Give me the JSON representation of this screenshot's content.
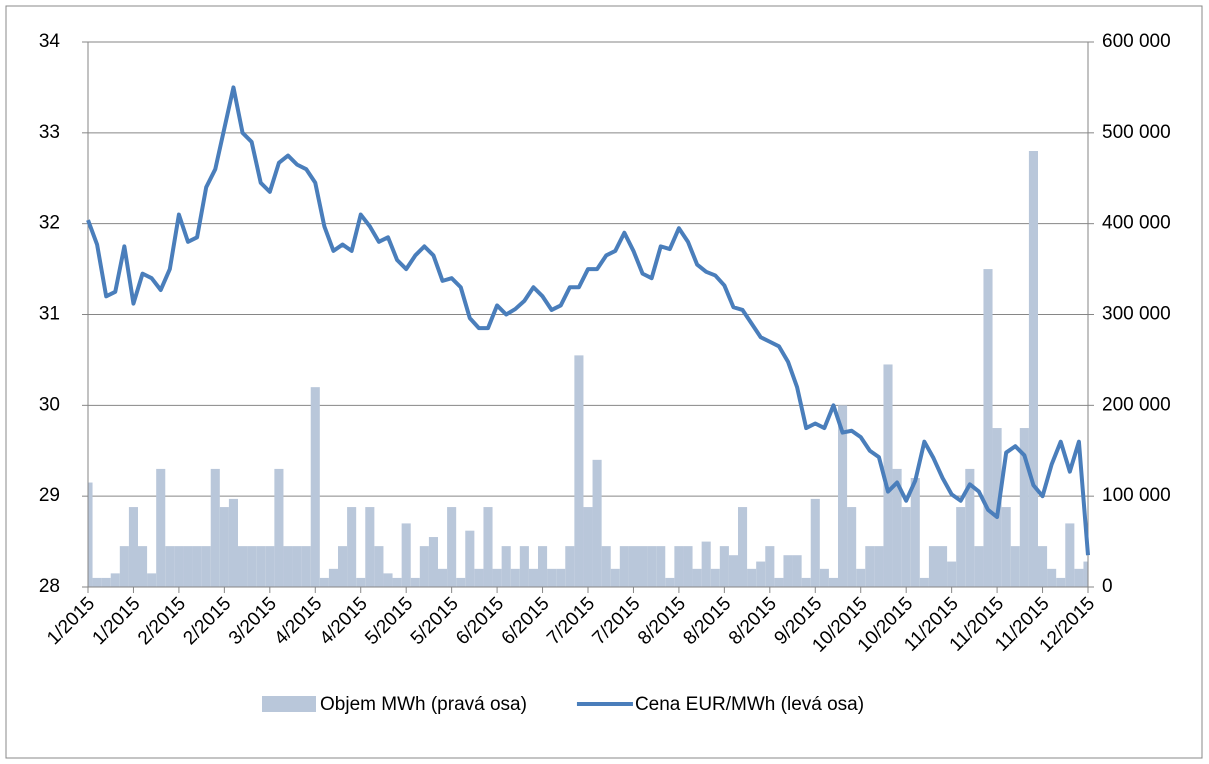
{
  "chart_data": {
    "type": "bar-line",
    "categories": [
      "1/2015",
      null,
      null,
      null,
      null,
      "1/2015",
      null,
      null,
      null,
      null,
      "2/2015",
      null,
      null,
      null,
      null,
      "2/2015",
      null,
      null,
      null,
      null,
      "3/2015",
      null,
      null,
      null,
      null,
      "4/2015",
      null,
      null,
      null,
      null,
      "4/2015",
      null,
      null,
      null,
      null,
      "5/2015",
      null,
      null,
      null,
      null,
      "5/2015",
      null,
      null,
      null,
      null,
      "6/2015",
      null,
      null,
      null,
      null,
      "6/2015",
      null,
      null,
      null,
      null,
      "7/2015",
      null,
      null,
      null,
      null,
      "7/2015",
      null,
      null,
      null,
      null,
      "8/2015",
      null,
      null,
      null,
      null,
      "8/2015",
      null,
      null,
      null,
      null,
      "8/2015",
      null,
      null,
      null,
      null,
      "9/2015",
      null,
      null,
      null,
      null,
      "10/2015",
      null,
      null,
      null,
      null,
      "10/2015",
      null,
      null,
      null,
      null,
      "11/2015",
      null,
      null,
      null,
      null,
      "11/2015",
      null,
      null,
      null,
      null,
      "11/2015",
      null,
      null,
      null,
      null,
      "12/2015"
    ],
    "series": [
      {
        "name": "Objem MWh (pravá osa)",
        "type": "bar",
        "axis": "y2",
        "color": "#b9c7da",
        "values": [
          115000,
          10000,
          10000,
          15000,
          45000,
          88000,
          45000,
          15000,
          130000,
          45000,
          45000,
          45000,
          45000,
          45000,
          130000,
          88000,
          97000,
          45000,
          45000,
          45000,
          45000,
          130000,
          45000,
          45000,
          45000,
          220000,
          10000,
          20000,
          45000,
          88000,
          10000,
          88000,
          45000,
          15000,
          10000,
          70000,
          10000,
          45000,
          55000,
          20000,
          88000,
          10000,
          62000,
          20000,
          88000,
          20000,
          45000,
          20000,
          45000,
          20000,
          45000,
          20000,
          20000,
          45000,
          255000,
          88000,
          140000,
          45000,
          20000,
          45000,
          45000,
          45000,
          45000,
          45000,
          10000,
          45000,
          45000,
          20000,
          50000,
          20000,
          45000,
          35000,
          88000,
          20000,
          28000,
          45000,
          10000,
          35000,
          35000,
          10000,
          97000,
          20000,
          10000,
          200000,
          88000,
          20000,
          45000,
          45000,
          245000,
          130000,
          88000,
          120000,
          10000,
          45000,
          45000,
          28000,
          88000,
          130000,
          45000,
          350000,
          175000,
          88000,
          45000,
          175000,
          480000,
          45000,
          20000,
          10000,
          70000,
          20000,
          28000
        ]
      },
      {
        "name": "Cena EUR/MWh (levá osa)",
        "type": "line",
        "axis": "y",
        "color": "#4a7ebb",
        "values": [
          32.04,
          31.77,
          31.2,
          31.25,
          31.75,
          31.12,
          31.45,
          31.4,
          31.27,
          31.5,
          32.1,
          31.8,
          31.85,
          32.4,
          32.6,
          33.05,
          33.5,
          33.0,
          32.9,
          32.45,
          32.35,
          32.67,
          32.75,
          32.65,
          32.6,
          32.45,
          31.97,
          31.7,
          31.77,
          31.7,
          32.1,
          31.97,
          31.8,
          31.85,
          31.6,
          31.5,
          31.65,
          31.75,
          31.65,
          31.37,
          31.4,
          31.3,
          30.96,
          30.85,
          30.85,
          31.1,
          31.0,
          31.06,
          31.15,
          31.3,
          31.2,
          31.05,
          31.1,
          31.3,
          31.3,
          31.5,
          31.5,
          31.65,
          31.7,
          31.9,
          31.7,
          31.45,
          31.4,
          31.75,
          31.72,
          31.95,
          31.8,
          31.55,
          31.47,
          31.43,
          31.32,
          31.08,
          31.05,
          30.9,
          30.75,
          30.7,
          30.65,
          30.48,
          30.2,
          29.75,
          29.8,
          29.75,
          30.0,
          29.7,
          29.72,
          29.65,
          29.5,
          29.43,
          29.05,
          29.15,
          28.95,
          29.17,
          29.6,
          29.42,
          29.2,
          29.02,
          28.95,
          29.13,
          29.05,
          28.85,
          28.77,
          29.48,
          29.55,
          29.45,
          29.12,
          29.0,
          29.35,
          29.6,
          29.27,
          29.6,
          28.35
        ]
      }
    ],
    "ylim": [
      28,
      34
    ],
    "yticks": [
      28,
      29,
      30,
      31,
      32,
      33,
      34
    ],
    "y2lim": [
      0,
      600000
    ],
    "y2ticks": [
      0,
      {
        "value": 100000,
        "label": "100 000"
      },
      {
        "value": 200000,
        "label": "200 000"
      },
      {
        "value": 300000,
        "label": "300 000"
      },
      {
        "value": 400000,
        "label": "400 000"
      },
      {
        "value": 500000,
        "label": "500 000"
      },
      {
        "value": 600000,
        "label": "600 000"
      }
    ],
    "grid": true,
    "legend": "bottom"
  }
}
